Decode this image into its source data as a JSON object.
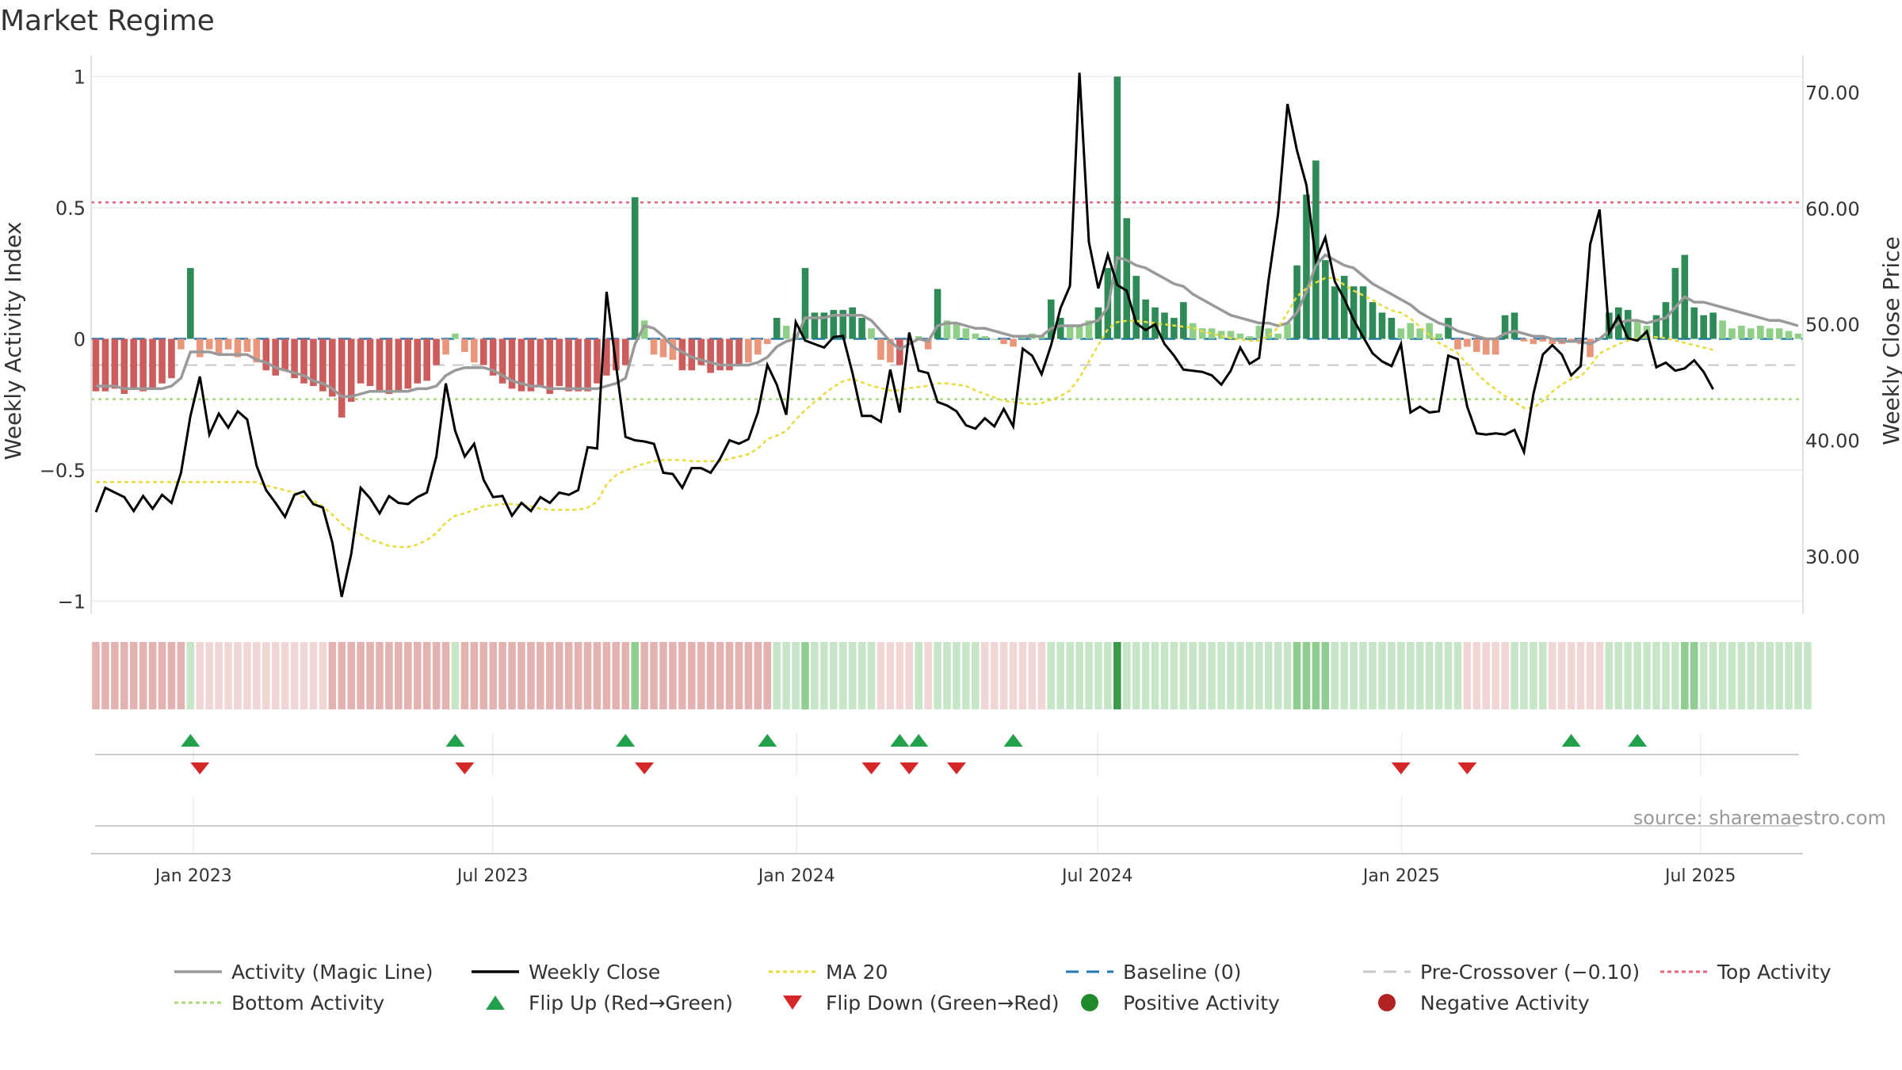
{
  "chart_data": {
    "type": "bar",
    "title": "Market Regime",
    "source": "source: sharemaestro.com",
    "ylabel_left": "Weekly Activity Index",
    "ylabel_right": "Weekly Close Price",
    "ylim_left": [
      -1.05,
      1.05
    ],
    "ylim_right": [
      25.0,
      72.5
    ],
    "yticks_left": [
      1,
      0.5,
      0,
      -0.5,
      -1
    ],
    "yticks_left_labels": [
      "1",
      "0.5",
      "0",
      "−0.5",
      "−1"
    ],
    "yticks_right": [
      70,
      60,
      50,
      40,
      30
    ],
    "yticks_right_labels": [
      "70.00",
      "60.00",
      "50.00",
      "40.00",
      "30.00"
    ],
    "x_range": [
      "2022-10-31",
      "2025-09-01"
    ],
    "x_ticks": [
      "2023-01-01",
      "2023-07-01",
      "2024-01-01",
      "2024-07-01",
      "2025-01-01",
      "2025-07-01"
    ],
    "x_tick_labels": [
      "Jan 2023",
      "Jul 2023",
      "Jan 2024",
      "Jul 2024",
      "Jan 2025",
      "Jul 2025"
    ],
    "reference_lines": {
      "baseline": 0,
      "pre_crossover": -0.1,
      "top_activity": 0.52,
      "bottom_activity": -0.23
    },
    "grid": true,
    "legend_position": "bottom",
    "legend": [
      {
        "label": "Activity (Magic Line)",
        "kind": "line",
        "color": "#999999"
      },
      {
        "label": "Weekly Close",
        "kind": "line",
        "color": "#000000"
      },
      {
        "label": "MA 20",
        "kind": "dotted",
        "color": "#e8dc3a"
      },
      {
        "label": "Baseline (0)",
        "kind": "dashed",
        "color": "#1f77b4"
      },
      {
        "label": "Pre-Crossover (−0.10)",
        "kind": "dashed",
        "color": "#c8c8c8"
      },
      {
        "label": "Top Activity",
        "kind": "dotted",
        "color": "#e8627c"
      },
      {
        "label": "Bottom Activity",
        "kind": "dotted",
        "color": "#a8d878"
      },
      {
        "label": "Flip Up (Red→Green)",
        "kind": "tri-up",
        "color": "#22a04b"
      },
      {
        "label": "Flip Down (Green→Red)",
        "kind": "tri-down",
        "color": "#d62728"
      },
      {
        "label": "Positive Activity",
        "kind": "dot",
        "color": "#1f8a2c"
      },
      {
        "label": "Negative Activity",
        "kind": "dot",
        "color": "#b22222"
      }
    ],
    "colors": {
      "pos_strong": "#2e8b57",
      "pos_light": "#8fcf87",
      "neg_strong": "#cd5c5c",
      "neg_light": "#e9967a"
    },
    "activity": [
      -0.2,
      -0.2,
      -0.19,
      -0.21,
      -0.19,
      -0.2,
      -0.19,
      -0.17,
      -0.15,
      -0.04,
      0.27,
      -0.07,
      -0.04,
      -0.06,
      -0.04,
      -0.07,
      -0.05,
      -0.09,
      -0.12,
      -0.14,
      -0.12,
      -0.15,
      -0.17,
      -0.18,
      -0.2,
      -0.22,
      -0.3,
      -0.24,
      -0.17,
      -0.18,
      -0.2,
      -0.21,
      -0.2,
      -0.19,
      -0.17,
      -0.16,
      -0.1,
      -0.06,
      0.02,
      -0.05,
      -0.09,
      -0.1,
      -0.14,
      -0.17,
      -0.19,
      -0.2,
      -0.2,
      -0.18,
      -0.21,
      -0.18,
      -0.2,
      -0.2,
      -0.2,
      -0.17,
      -0.14,
      -0.12,
      -0.1,
      0.54,
      0.07,
      -0.06,
      -0.07,
      -0.08,
      -0.12,
      -0.12,
      -0.1,
      -0.13,
      -0.12,
      -0.12,
      -0.1,
      -0.09,
      -0.06,
      -0.02,
      0.08,
      0.05,
      0.02,
      0.27,
      0.1,
      0.1,
      0.11,
      0.11,
      0.12,
      0.08,
      0.04,
      -0.08,
      -0.09,
      -0.1,
      -0.01,
      0.01,
      -0.04,
      0.19,
      0.07,
      0.06,
      0.04,
      0.02,
      0.01,
      0.0,
      -0.02,
      -0.03,
      0.01,
      0.02,
      0.01,
      0.15,
      0.08,
      0.05,
      0.05,
      0.07,
      0.12,
      0.27,
      1.0,
      0.46,
      0.24,
      0.15,
      0.12,
      0.1,
      0.08,
      0.14,
      0.06,
      0.04,
      0.04,
      0.03,
      0.03,
      0.02,
      0.01,
      0.05,
      0.04,
      0.02,
      0.06,
      0.28,
      0.55,
      0.68,
      0.3,
      0.2,
      0.24,
      0.2,
      0.2,
      0.14,
      0.1,
      0.08,
      0.04,
      0.06,
      0.04,
      0.06,
      0.02,
      0.08,
      -0.04,
      -0.03,
      -0.05,
      -0.06,
      -0.06,
      0.09,
      0.1,
      -0.01,
      -0.02,
      -0.01,
      -0.02,
      -0.02,
      -0.01,
      -0.02,
      -0.07,
      0.0,
      0.1,
      0.12,
      0.11,
      0.07,
      0.05,
      0.09,
      0.14,
      0.27,
      0.32,
      0.12,
      0.09,
      0.1,
      0.07,
      0.04,
      0.05,
      0.04,
      0.05,
      0.04,
      0.04,
      0.03,
      0.02
    ],
    "magic": [
      -0.18,
      -0.18,
      -0.18,
      -0.19,
      -0.19,
      -0.19,
      -0.19,
      -0.19,
      -0.18,
      -0.15,
      -0.05,
      -0.05,
      -0.05,
      -0.06,
      -0.06,
      -0.06,
      -0.06,
      -0.08,
      -0.09,
      -0.11,
      -0.12,
      -0.13,
      -0.14,
      -0.16,
      -0.17,
      -0.19,
      -0.22,
      -0.22,
      -0.21,
      -0.2,
      -0.2,
      -0.2,
      -0.2,
      -0.2,
      -0.19,
      -0.19,
      -0.18,
      -0.14,
      -0.12,
      -0.11,
      -0.11,
      -0.11,
      -0.12,
      -0.14,
      -0.16,
      -0.17,
      -0.18,
      -0.18,
      -0.19,
      -0.19,
      -0.19,
      -0.19,
      -0.19,
      -0.19,
      -0.18,
      -0.17,
      -0.15,
      -0.02,
      0.05,
      0.04,
      0.01,
      -0.03,
      -0.05,
      -0.07,
      -0.08,
      -0.09,
      -0.1,
      -0.1,
      -0.1,
      -0.1,
      -0.09,
      -0.07,
      -0.03,
      -0.01,
      0.0,
      0.08,
      0.08,
      0.08,
      0.09,
      0.09,
      0.09,
      0.09,
      0.07,
      0.03,
      -0.01,
      -0.04,
      -0.02,
      0.0,
      -0.01,
      0.05,
      0.06,
      0.06,
      0.05,
      0.04,
      0.04,
      0.03,
      0.02,
      0.01,
      0.01,
      0.01,
      0.01,
      0.04,
      0.05,
      0.05,
      0.05,
      0.06,
      0.07,
      0.12,
      0.31,
      0.3,
      0.28,
      0.27,
      0.25,
      0.23,
      0.21,
      0.2,
      0.17,
      0.15,
      0.13,
      0.11,
      0.09,
      0.08,
      0.07,
      0.06,
      0.06,
      0.05,
      0.06,
      0.1,
      0.18,
      0.28,
      0.32,
      0.3,
      0.28,
      0.27,
      0.24,
      0.21,
      0.19,
      0.17,
      0.15,
      0.13,
      0.1,
      0.08,
      0.06,
      0.05,
      0.03,
      0.02,
      0.01,
      0.0,
      0.0,
      0.02,
      0.03,
      0.02,
      0.01,
      0.01,
      0.0,
      -0.01,
      -0.01,
      -0.01,
      -0.02,
      0.0,
      0.03,
      0.06,
      0.07,
      0.07,
      0.06,
      0.07,
      0.08,
      0.12,
      0.16,
      0.14,
      0.14,
      0.13,
      0.12,
      0.11,
      0.1,
      0.09,
      0.08,
      0.07,
      0.07,
      0.06,
      0.05
    ],
    "close": [
      33.8,
      35.9,
      35.5,
      35.1,
      33.9,
      35.2,
      34.1,
      35.3,
      34.6,
      37.2,
      42.1,
      45.5,
      40.5,
      42.3,
      41.1,
      42.5,
      41.8,
      37.8,
      35.7,
      34.6,
      33.4,
      35.3,
      35.6,
      34.5,
      34.2,
      31.2,
      26.5,
      30.2,
      35.9,
      35.0,
      33.7,
      35.2,
      34.6,
      34.5,
      35.1,
      35.5,
      38.6,
      44.9,
      40.8,
      38.6,
      39.7,
      36.6,
      35.1,
      35.2,
      33.5,
      34.6,
      33.9,
      35.1,
      34.6,
      35.5,
      35.3,
      35.7,
      39.4,
      39.3,
      52.8,
      46.5,
      40.3,
      40.0,
      39.9,
      39.7,
      37.2,
      37.1,
      35.9,
      37.6,
      37.6,
      37.2,
      38.4,
      40.0,
      39.7,
      40.1,
      42.4,
      46.5,
      44.8,
      42.2,
      50.2,
      48.6,
      48.3,
      48.0,
      48.9,
      49.0,
      45.8,
      42.1,
      42.1,
      41.6,
      46.1,
      42.4,
      49.3,
      46.0,
      45.8,
      43.3,
      43.0,
      42.5,
      41.3,
      41.0,
      41.9,
      41.2,
      42.7,
      41.2,
      47.9,
      47.3,
      45.7,
      48.2,
      51.4,
      53.3,
      71.7,
      57.1,
      53.1,
      56.0,
      53.4,
      52.9,
      50.1,
      49.5,
      50.0,
      48.3,
      47.3,
      46.1,
      46.0,
      45.9,
      45.6,
      44.8,
      46.0,
      48.0,
      46.6,
      47.1,
      53.8,
      59.5,
      69.0,
      65.0,
      62.0,
      55.5,
      57.5,
      53.7,
      52.2,
      50.4,
      48.9,
      47.5,
      46.8,
      46.4,
      48.3,
      42.4,
      42.9,
      42.4,
      42.5,
      47.3,
      47.0,
      42.9,
      40.6,
      40.5,
      40.6,
      40.5,
      40.9,
      39.0,
      44.0,
      47.4,
      48.2,
      47.4,
      45.6,
      46.4,
      56.9,
      59.9,
      49.3,
      50.7,
      48.8,
      48.6,
      49.4,
      46.3,
      46.7,
      46.0,
      46.2,
      46.9,
      45.9,
      44.4
    ],
    "ma20": [
      36.4,
      36.4,
      36.4,
      36.4,
      36.4,
      36.4,
      36.4,
      36.4,
      36.4,
      36.4,
      36.4,
      36.4,
      36.4,
      36.4,
      36.4,
      36.4,
      36.4,
      36.4,
      36.1,
      35.9,
      35.7,
      35.5,
      35.1,
      34.8,
      34.3,
      33.6,
      32.8,
      32.2,
      31.9,
      31.4,
      31.2,
      30.9,
      30.8,
      30.8,
      31.0,
      31.4,
      32.0,
      32.9,
      33.5,
      33.7,
      34.0,
      34.3,
      34.4,
      34.5,
      34.5,
      34.4,
      34.3,
      34.1,
      34.0,
      34.0,
      34.0,
      34.0,
      34.2,
      34.7,
      36.2,
      37.0,
      37.4,
      37.7,
      38.0,
      38.2,
      38.3,
      38.3,
      38.3,
      38.2,
      38.2,
      38.2,
      38.2,
      38.4,
      38.6,
      38.8,
      39.3,
      40.1,
      40.4,
      40.8,
      41.8,
      42.6,
      43.3,
      44.0,
      44.6,
      45.1,
      45.3,
      45.0,
      44.7,
      44.5,
      44.3,
      44.3,
      44.5,
      44.6,
      44.7,
      44.9,
      44.9,
      44.8,
      44.7,
      44.3,
      44.0,
      43.7,
      43.4,
      43.3,
      43.2,
      43.1,
      43.2,
      43.5,
      43.8,
      44.3,
      45.4,
      46.8,
      48.2,
      49.6,
      50.2,
      50.3,
      50.3,
      50.2,
      50.1,
      50.0,
      49.9,
      49.8,
      49.7,
      49.4,
      49.2,
      49.0,
      48.8,
      48.7,
      48.6,
      48.6,
      49.0,
      49.7,
      51.0,
      52.4,
      53.1,
      53.6,
      54.0,
      54.0,
      53.4,
      52.9,
      52.5,
      52.1,
      51.6,
      51.2,
      51.0,
      50.5,
      49.8,
      49.1,
      48.4,
      48.0,
      47.5,
      46.6,
      45.8,
      45.0,
      44.4,
      43.8,
      43.3,
      42.8,
      42.8,
      43.4,
      44.2,
      44.8,
      45.3,
      45.5,
      46.4,
      47.5,
      47.9,
      48.3,
      48.6,
      48.8,
      48.9,
      48.9,
      48.8,
      48.6,
      48.4,
      48.2,
      48.0,
      47.8
    ],
    "regime": [
      -2,
      -2,
      -2,
      -2,
      -2,
      -2,
      -2,
      -2,
      -2,
      -2,
      1,
      -1,
      -1,
      -1,
      -1,
      -1,
      -1,
      -1,
      -1,
      -1,
      -1,
      -1,
      -1,
      -1,
      -1,
      -2,
      -2,
      -2,
      -2,
      -2,
      -2,
      -2,
      -2,
      -2,
      -2,
      -2,
      -2,
      -2,
      1,
      -2,
      -2,
      -2,
      -2,
      -2,
      -2,
      -2,
      -2,
      -2,
      -2,
      -2,
      -2,
      -2,
      -2,
      -2,
      -2,
      -2,
      -2,
      2,
      -2,
      -2,
      -2,
      -2,
      -2,
      -2,
      -2,
      -2,
      -2,
      -2,
      -2,
      -2,
      -2,
      -2,
      1,
      1,
      1,
      2,
      1,
      1,
      1,
      1,
      1,
      1,
      1,
      -1,
      -1,
      -1,
      -1,
      1,
      -1,
      1,
      1,
      1,
      1,
      1,
      -1,
      -1,
      -1,
      -1,
      -1,
      -1,
      -1,
      1,
      1,
      1,
      1,
      1,
      1,
      1,
      3,
      1,
      1,
      1,
      1,
      1,
      1,
      1,
      1,
      1,
      1,
      1,
      1,
      1,
      1,
      1,
      1,
      1,
      1,
      2,
      2,
      2,
      2,
      1,
      1,
      1,
      1,
      1,
      1,
      1,
      1,
      1,
      1,
      1,
      1,
      1,
      1,
      -1,
      -1,
      -1,
      -1,
      -1,
      1,
      1,
      1,
      1,
      -1,
      -1,
      -1,
      -1,
      -1,
      -1,
      1,
      1,
      1,
      1,
      1,
      1,
      1,
      1,
      2,
      2,
      1,
      1,
      1,
      1,
      1,
      1,
      1,
      1,
      1,
      1,
      1,
      1
    ],
    "flip_up": [
      10,
      38,
      56,
      71,
      85,
      87,
      97,
      156,
      163
    ],
    "flip_down": [
      11,
      39,
      58,
      82,
      86,
      91,
      138,
      145
    ]
  }
}
